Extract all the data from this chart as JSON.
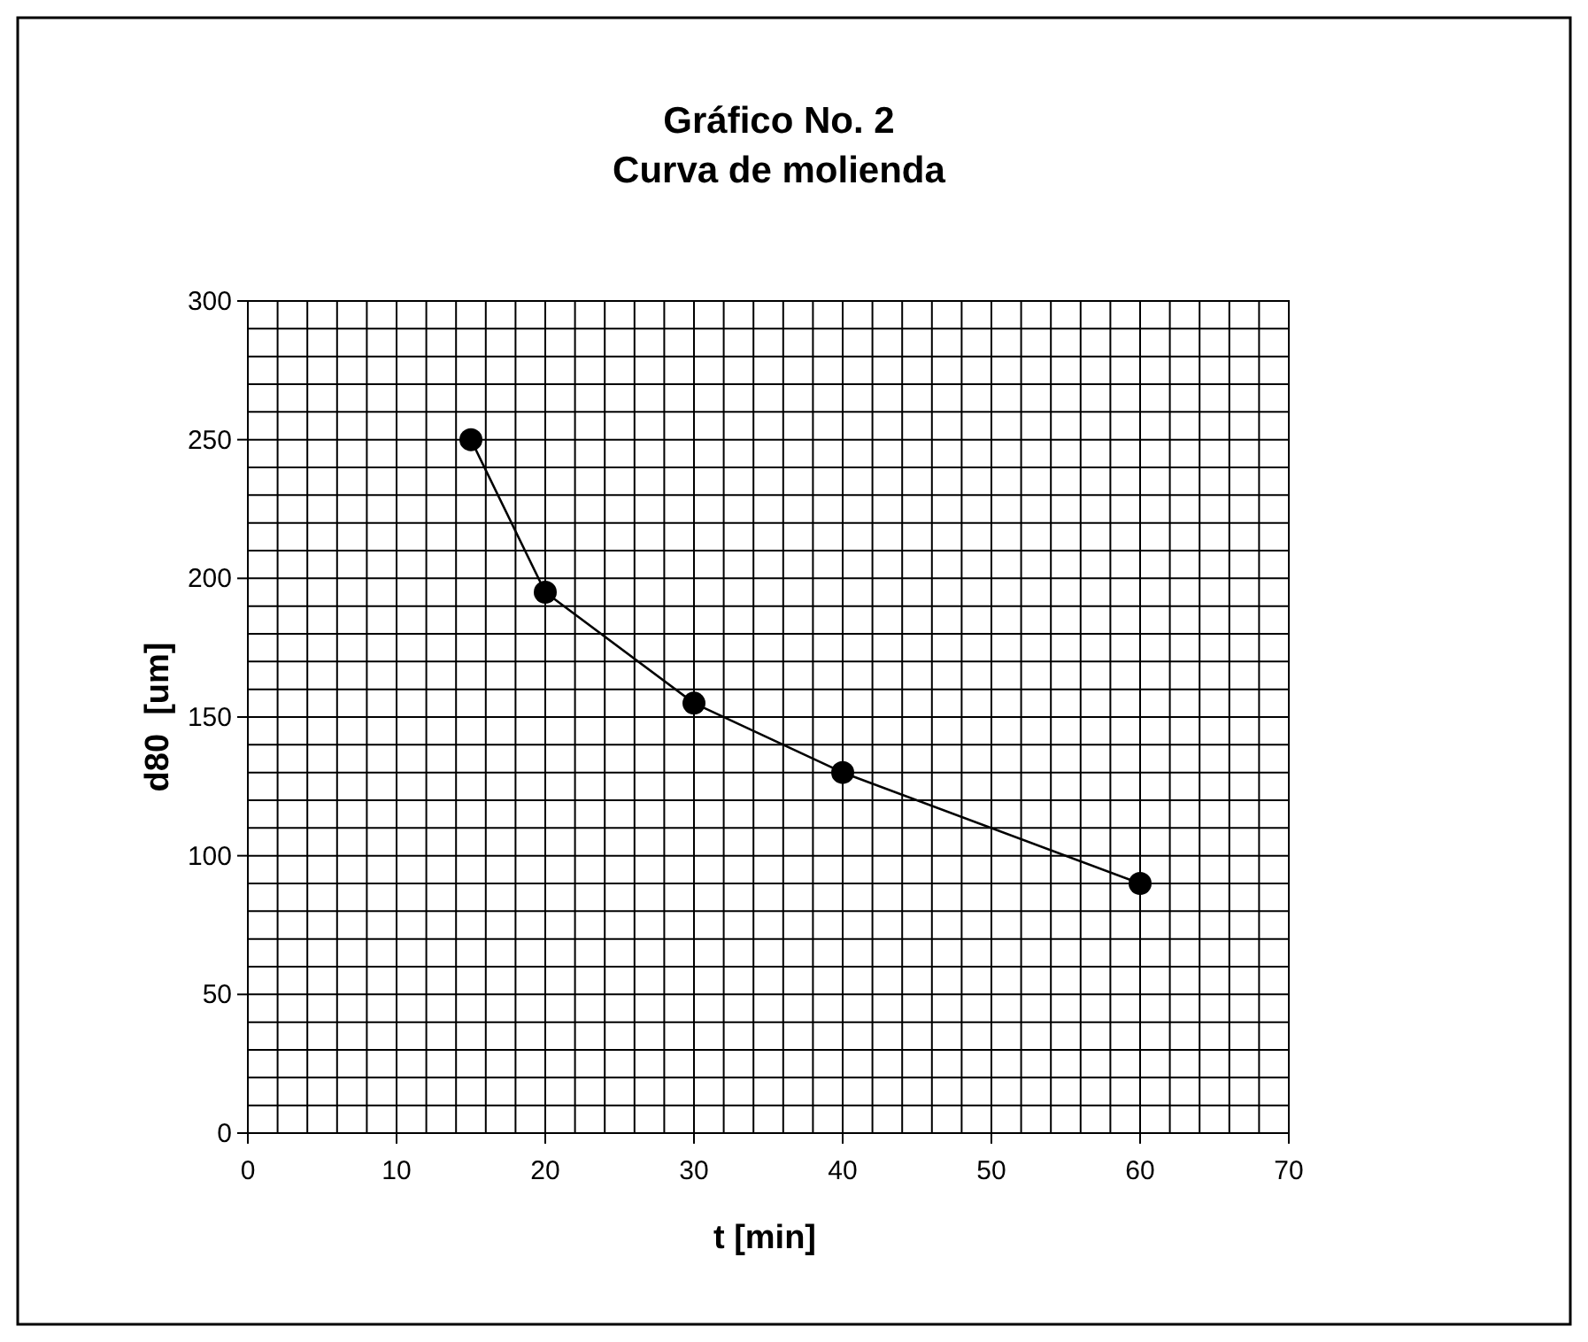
{
  "chart_data": {
    "type": "line",
    "title": "Gráfico No. 2\nCurva de molienda",
    "xlabel": "t [min]",
    "ylabel": "d80  [um]",
    "x": [
      15,
      20,
      30,
      40,
      60
    ],
    "series": [
      {
        "color": "#000000",
        "values": [
          250,
          195,
          155,
          130,
          90
        ]
      }
    ],
    "xlim": [
      0,
      70
    ],
    "ylim": [
      0,
      300
    ],
    "xticks": [
      0,
      {
        "value": 2,
        "label": null
      },
      {
        "value": 4,
        "label": null
      },
      {
        "value": 6,
        "label": null
      },
      {
        "value": 8,
        "label": null
      },
      10,
      {
        "value": 12,
        "label": null
      },
      {
        "value": 14,
        "label": null
      },
      {
        "value": 16,
        "label": null
      },
      {
        "value": 18,
        "label": null
      },
      20,
      {
        "value": 22,
        "label": null
      },
      {
        "value": 24,
        "label": null
      },
      {
        "value": 26,
        "label": null
      },
      {
        "value": 28,
        "label": null
      },
      30,
      {
        "value": 32,
        "label": null
      },
      {
        "value": 34,
        "label": null
      },
      {
        "value": 36,
        "label": null
      },
      {
        "value": 38,
        "label": null
      },
      40,
      {
        "value": 42,
        "label": null
      },
      {
        "value": 44,
        "label": null
      },
      {
        "value": 46,
        "label": null
      },
      {
        "value": 48,
        "label": null
      },
      50,
      {
        "value": 52,
        "label": null
      },
      {
        "value": 54,
        "label": null
      },
      {
        "value": 56,
        "label": null
      },
      {
        "value": 58,
        "label": null
      },
      60,
      {
        "value": 62,
        "label": null
      },
      {
        "value": 64,
        "label": null
      },
      {
        "value": 66,
        "label": null
      },
      {
        "value": 68,
        "label": null
      },
      70
    ],
    "yticks": [
      0,
      {
        "value": 10,
        "label": null
      },
      {
        "value": 20,
        "label": null
      },
      {
        "value": 30,
        "label": null
      },
      {
        "value": 40,
        "label": null
      },
      50,
      {
        "value": 60,
        "label": null
      },
      {
        "value": 70,
        "label": null
      },
      {
        "value": 80,
        "label": null
      },
      {
        "value": 90,
        "label": null
      },
      100,
      {
        "value": 110,
        "label": null
      },
      {
        "value": 120,
        "label": null
      },
      {
        "value": 130,
        "label": null
      },
      {
        "value": 140,
        "label": null
      },
      150,
      {
        "value": 160,
        "label": null
      },
      {
        "value": 170,
        "label": null
      },
      {
        "value": 180,
        "label": null
      },
      {
        "value": 190,
        "label": null
      },
      200,
      {
        "value": 210,
        "label": null
      },
      {
        "value": 220,
        "label": null
      },
      {
        "value": 230,
        "label": null
      },
      {
        "value": 240,
        "label": null
      },
      250,
      {
        "value": 260,
        "label": null
      },
      {
        "value": 270,
        "label": null
      },
      {
        "value": 280,
        "label": null
      },
      {
        "value": 290,
        "label": null
      },
      300
    ],
    "grid": true,
    "marker": "circle",
    "line_style": "solid"
  }
}
